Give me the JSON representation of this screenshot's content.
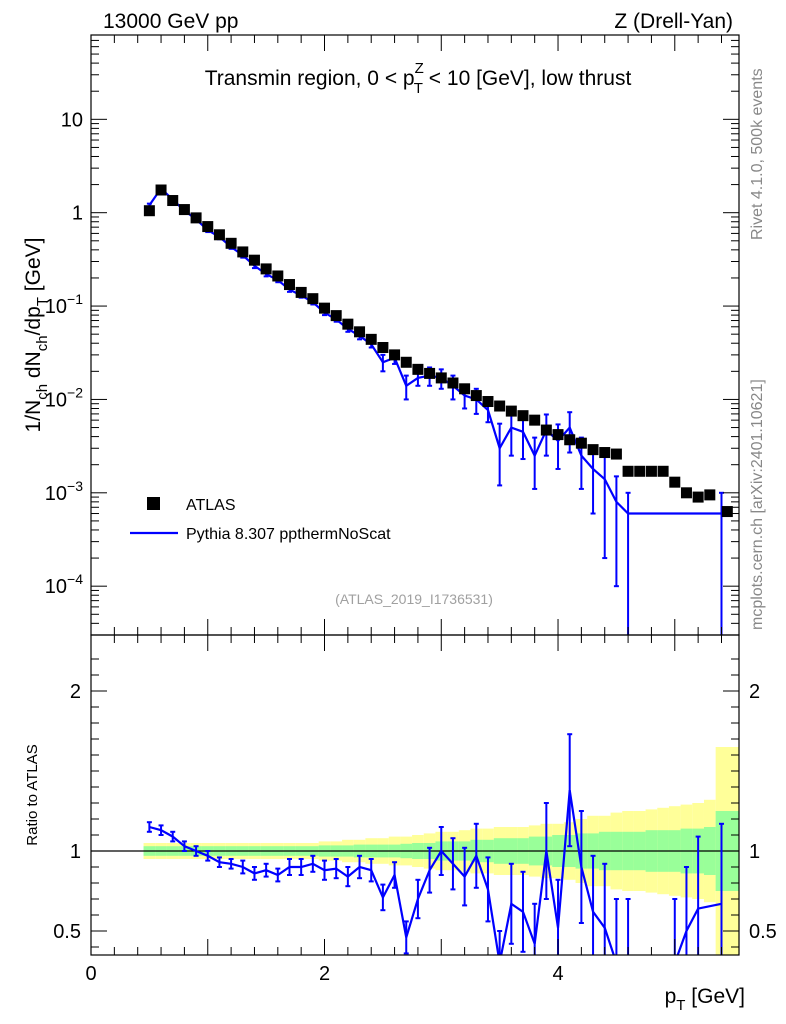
{
  "header": {
    "left": "13000 GeV pp",
    "right": "Z (Drell-Yan)"
  },
  "side_labels": {
    "rivet": "Rivet 4.1.0,  500k events",
    "mcplots": "mcplots.cern.ch [arXiv:2401.10621]"
  },
  "chart_data": [
    {
      "type": "scatter",
      "title": "Transmin region, 0 < p_T^Z < 10 [GeV], low thrust",
      "title_parts": {
        "before": "Transmin region, 0 < p",
        "sup": "Z",
        "sub": "T",
        "after": " < 10 [GeV], low thrust"
      },
      "xlabel": "p_T [GeV]",
      "xlabel_parts": {
        "base": "p",
        "sub": "T",
        "after": " [GeV]"
      },
      "ylabel": "1/N_ch dN_ch/dp_T [GeV]",
      "ylabel_parts": {
        "a": "1/N",
        "b": "ch",
        "c": " dN",
        "d": "ch",
        "e": "/dp",
        "f": "T",
        "g": " [GeV]"
      },
      "yscale": "log",
      "xlim": [
        0,
        5.55
      ],
      "ylim": [
        3e-05,
        80
      ],
      "ytick_labels": [
        {
          "value": 0.0001,
          "base": "10",
          "exp": "−4"
        },
        {
          "value": 0.001,
          "base": "10",
          "exp": "−3"
        },
        {
          "value": 0.01,
          "base": "10",
          "exp": "−2"
        },
        {
          "value": 0.1,
          "base": "10",
          "exp": "−1"
        },
        {
          "value": 1,
          "base": "1",
          "exp": ""
        },
        {
          "value": 10,
          "base": "10",
          "exp": ""
        }
      ],
      "watermark": "(ATLAS_2019_I1736531)",
      "legend": {
        "position": "bottom-left",
        "entries": [
          "ATLAS",
          "Pythia 8.307 ppthermNoScat"
        ]
      },
      "series": [
        {
          "name": "ATLAS",
          "marker": "square",
          "color": "#000000",
          "x": [
            0.5,
            0.6,
            0.7,
            0.8,
            0.9,
            1.0,
            1.1,
            1.2,
            1.3,
            1.4,
            1.5,
            1.6,
            1.7,
            1.8,
            1.9,
            2.0,
            2.1,
            2.2,
            2.3,
            2.4,
            2.5,
            2.6,
            2.7,
            2.8,
            2.9,
            3.0,
            3.1,
            3.2,
            3.3,
            3.4,
            3.5,
            3.6,
            3.7,
            3.8,
            3.9,
            4.0,
            4.1,
            4.2,
            4.3,
            4.4,
            4.5,
            4.6,
            4.7,
            4.8,
            4.9,
            5.0,
            5.1,
            5.2,
            5.3,
            5.45
          ],
          "y": [
            1.05,
            1.75,
            1.35,
            1.08,
            0.88,
            0.71,
            0.58,
            0.47,
            0.38,
            0.31,
            0.25,
            0.21,
            0.17,
            0.14,
            0.12,
            0.095,
            0.079,
            0.064,
            0.053,
            0.044,
            0.036,
            0.03,
            0.025,
            0.021,
            0.019,
            0.017,
            0.015,
            0.013,
            0.011,
            0.0095,
            0.0085,
            0.0075,
            0.0067,
            0.006,
            0.0047,
            0.0042,
            0.0037,
            0.0034,
            0.0029,
            0.0027,
            0.0026,
            0.0017,
            0.0017,
            0.0017,
            0.0017,
            0.0013,
            0.001,
            0.0009,
            0.00095,
            0.00063
          ]
        },
        {
          "name": "Pythia 8.307 ppthermNoScat",
          "marker": "line",
          "color": "#0000ff",
          "x": [
            0.5,
            0.6,
            0.7,
            0.8,
            0.9,
            1.0,
            1.1,
            1.2,
            1.3,
            1.4,
            1.5,
            1.6,
            1.7,
            1.8,
            1.9,
            2.0,
            2.1,
            2.2,
            2.3,
            2.4,
            2.5,
            2.6,
            2.7,
            2.8,
            2.9,
            3.0,
            3.1,
            3.2,
            3.3,
            3.4,
            3.5,
            3.6,
            3.7,
            3.8,
            3.9,
            4.0,
            4.1,
            4.2,
            4.3,
            4.4,
            4.5,
            4.6,
            5.4
          ],
          "y": [
            1.2,
            1.82,
            1.38,
            1.05,
            0.85,
            0.65,
            0.55,
            0.43,
            0.35,
            0.27,
            0.22,
            0.19,
            0.15,
            0.13,
            0.11,
            0.085,
            0.072,
            0.057,
            0.048,
            0.039,
            0.025,
            0.028,
            0.014,
            0.017,
            0.018,
            0.017,
            0.014,
            0.011,
            0.01,
            0.0077,
            0.003,
            0.005,
            0.0045,
            0.0025,
            0.0047,
            0.0036,
            0.005,
            0.0025,
            0.0018,
            0.0014,
            0.0008,
            0.0006,
            0.0006
          ],
          "err_low": [
            0.05,
            0.07,
            0.06,
            0.05,
            0.04,
            0.03,
            0.03,
            0.02,
            0.02,
            0.015,
            0.012,
            0.01,
            0.008,
            0.007,
            0.006,
            0.005,
            0.004,
            0.004,
            0.004,
            0.003,
            0.005,
            0.004,
            0.004,
            0.003,
            0.004,
            0.004,
            0.004,
            0.003,
            0.003,
            0.002,
            0.0018,
            0.0025,
            0.0022,
            0.0014,
            0.0022,
            0.0018,
            0.0023,
            0.0014,
            0.0012,
            0.0012,
            0.0007,
            0.0006,
            0.0006
          ],
          "err_high": [
            0.05,
            0.07,
            0.06,
            0.05,
            0.04,
            0.03,
            0.03,
            0.02,
            0.02,
            0.015,
            0.012,
            0.01,
            0.008,
            0.007,
            0.006,
            0.005,
            0.004,
            0.004,
            0.004,
            0.003,
            0.005,
            0.004,
            0.004,
            0.004,
            0.004,
            0.004,
            0.004,
            0.003,
            0.003,
            0.002,
            0.0025,
            0.0025,
            0.0022,
            0.0014,
            0.0022,
            0.0018,
            0.0023,
            0.0014,
            0.0012,
            0.0012,
            0.0007,
            0.0004,
            0.0004
          ]
        }
      ]
    },
    {
      "type": "line",
      "ylabel": "Ratio to ATLAS",
      "xlabel": "p_T [GeV]",
      "xlim": [
        0,
        5.55
      ],
      "ylim": [
        0.35,
        2.35
      ],
      "xtick_labels": [
        "0",
        "2",
        "4"
      ],
      "xticks": [
        0,
        2,
        4
      ],
      "ytick_labels": [
        "0.5",
        "1",
        "2"
      ],
      "yticks": [
        0.5,
        1,
        2
      ],
      "reference_line": 1,
      "bands": {
        "x": [
          0.45,
          0.55,
          0.65,
          0.75,
          0.85,
          0.95,
          1.05,
          1.15,
          1.25,
          1.35,
          1.45,
          1.55,
          1.65,
          1.75,
          1.85,
          1.95,
          2.05,
          2.15,
          2.25,
          2.35,
          2.45,
          2.55,
          2.65,
          2.75,
          2.85,
          2.95,
          3.05,
          3.15,
          3.25,
          3.35,
          3.45,
          3.55,
          3.65,
          3.75,
          3.85,
          3.95,
          4.05,
          4.15,
          4.25,
          4.35,
          4.45,
          4.55,
          4.65,
          4.75,
          4.85,
          4.95,
          5.05,
          5.15,
          5.25,
          5.35,
          5.55
        ],
        "stat_half": [
          0.03,
          0.03,
          0.03,
          0.03,
          0.03,
          0.03,
          0.03,
          0.03,
          0.03,
          0.03,
          0.03,
          0.03,
          0.03,
          0.03,
          0.03,
          0.035,
          0.035,
          0.035,
          0.04,
          0.04,
          0.04,
          0.04,
          0.045,
          0.05,
          0.05,
          0.06,
          0.06,
          0.06,
          0.07,
          0.07,
          0.08,
          0.08,
          0.08,
          0.09,
          0.09,
          0.1,
          0.1,
          0.11,
          0.11,
          0.12,
          0.12,
          0.12,
          0.12,
          0.13,
          0.13,
          0.13,
          0.14,
          0.14,
          0.15,
          0.25,
          0.3
        ],
        "total_half": [
          0.05,
          0.05,
          0.05,
          0.05,
          0.05,
          0.05,
          0.05,
          0.05,
          0.05,
          0.05,
          0.05,
          0.05,
          0.05,
          0.05,
          0.05,
          0.06,
          0.06,
          0.07,
          0.07,
          0.08,
          0.08,
          0.09,
          0.09,
          0.1,
          0.11,
          0.12,
          0.12,
          0.13,
          0.14,
          0.14,
          0.15,
          0.15,
          0.15,
          0.16,
          0.17,
          0.17,
          0.18,
          0.2,
          0.22,
          0.22,
          0.24,
          0.25,
          0.25,
          0.26,
          0.27,
          0.28,
          0.29,
          0.3,
          0.32,
          0.65,
          0.9
        ]
      },
      "series": [
        {
          "name": "Pythia 8.307 ppthermNoScat",
          "color": "#0000ff",
          "x": [
            0.5,
            0.6,
            0.7,
            0.8,
            0.9,
            1.0,
            1.1,
            1.2,
            1.3,
            1.4,
            1.5,
            1.6,
            1.7,
            1.8,
            1.9,
            2.0,
            2.1,
            2.2,
            2.3,
            2.4,
            2.5,
            2.6,
            2.7,
            2.8,
            2.9,
            3.0,
            3.1,
            3.2,
            3.3,
            3.4,
            3.5,
            3.6,
            3.7,
            3.8,
            3.9,
            4.0,
            4.1,
            4.2,
            4.3,
            4.4,
            4.5,
            4.6,
            5.0,
            5.1,
            5.2,
            5.4
          ],
          "y": [
            1.15,
            1.13,
            1.09,
            1.03,
            1.0,
            0.97,
            0.93,
            0.92,
            0.9,
            0.86,
            0.88,
            0.85,
            0.9,
            0.9,
            0.92,
            0.88,
            0.89,
            0.84,
            0.9,
            0.88,
            0.71,
            0.85,
            0.46,
            0.7,
            0.88,
            1.0,
            0.92,
            0.84,
            0.97,
            0.76,
            0.3,
            0.67,
            0.62,
            0.42,
            1.0,
            0.52,
            1.38,
            0.9,
            0.62,
            0.52,
            0.3,
            0.3,
            0.3,
            0.5,
            0.64,
            0.67
          ],
          "err": [
            0.03,
            0.03,
            0.03,
            0.03,
            0.03,
            0.03,
            0.03,
            0.03,
            0.04,
            0.04,
            0.04,
            0.04,
            0.05,
            0.05,
            0.05,
            0.06,
            0.06,
            0.06,
            0.07,
            0.07,
            0.08,
            0.08,
            0.1,
            0.12,
            0.14,
            0.15,
            0.16,
            0.18,
            0.2,
            0.2,
            0.2,
            0.25,
            0.25,
            0.25,
            0.3,
            0.3,
            0.35,
            0.35,
            0.35,
            0.4,
            0.4,
            0.4,
            0.4,
            0.4,
            0.45,
            0.5
          ]
        }
      ]
    }
  ]
}
